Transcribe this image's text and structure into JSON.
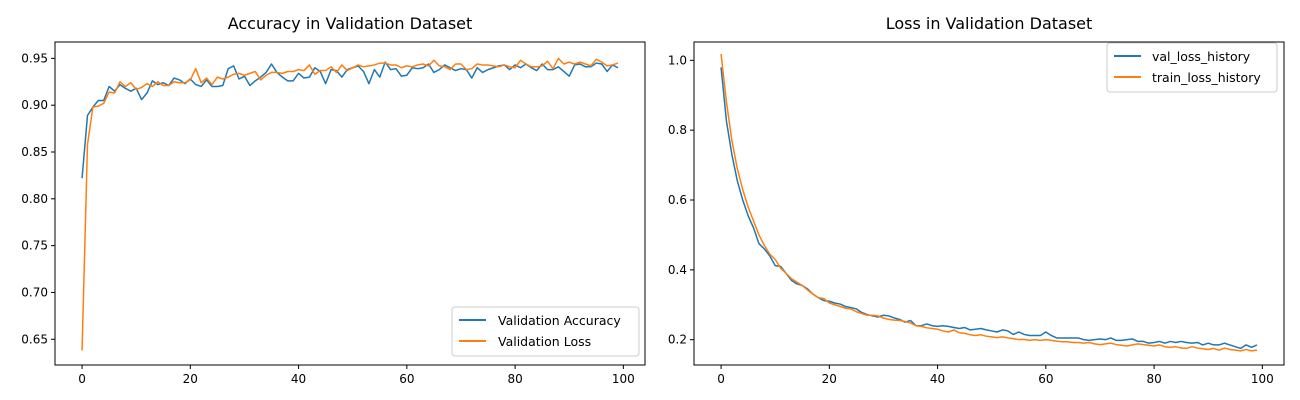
{
  "charts": [
    {
      "title": "Accuracy in Validation Dataset",
      "xticks": [
        0,
        20,
        40,
        60,
        80,
        100
      ],
      "yticks": [
        0.65,
        0.7,
        0.75,
        0.8,
        0.85,
        0.9,
        0.95
      ],
      "ytick_labels": [
        "0.65",
        "0.70",
        "0.75",
        "0.80",
        "0.85",
        "0.90",
        "0.95"
      ],
      "legend": [
        "Validation Accuracy",
        "Validation Loss"
      ]
    },
    {
      "title": "Loss in Validation Dataset",
      "xticks": [
        0,
        20,
        40,
        60,
        80,
        100
      ],
      "yticks": [
        0.2,
        0.4,
        0.6,
        0.8,
        1.0
      ],
      "ytick_labels": [
        "0.2",
        "0.4",
        "0.6",
        "0.8",
        "1.0"
      ],
      "legend": [
        "val_loss_history",
        "train_loss_history"
      ]
    }
  ],
  "colors": {
    "series1": "#1f77b4",
    "series2": "#ff7f0e"
  },
  "chart_data": [
    {
      "type": "line",
      "title": "Accuracy in Validation Dataset",
      "xlabel": "",
      "ylabel": "",
      "xlim": [
        -5,
        104
      ],
      "ylim": [
        0.6225,
        0.9675
      ],
      "grid": false,
      "legend_position": "bottom-right",
      "series": [
        {
          "name": "Validation Accuracy",
          "color": "#1f77b4",
          "x": [
            0,
            1,
            2,
            3,
            4,
            5,
            6,
            7,
            8,
            9,
            10,
            11,
            12,
            13,
            14,
            15,
            16,
            17,
            18,
            19,
            20,
            21,
            22,
            23,
            24,
            25,
            26,
            27,
            28,
            29,
            30,
            31,
            32,
            33,
            34,
            35,
            36,
            37,
            38,
            39,
            40,
            41,
            42,
            43,
            44,
            45,
            46,
            47,
            48,
            49,
            50,
            51,
            52,
            53,
            54,
            55,
            56,
            57,
            58,
            59,
            60,
            61,
            62,
            63,
            64,
            65,
            66,
            67,
            68,
            69,
            70,
            71,
            72,
            73,
            74,
            75,
            76,
            77,
            78,
            79,
            80,
            81,
            82,
            83,
            84,
            85,
            86,
            87,
            88,
            89,
            90,
            91,
            92,
            93,
            94,
            95,
            96,
            97,
            98,
            99
          ],
          "y": [
            0.822,
            0.889,
            0.898,
            0.905,
            0.905,
            0.92,
            0.915,
            0.922,
            0.918,
            0.915,
            0.918,
            0.906,
            0.913,
            0.926,
            0.922,
            0.924,
            0.921,
            0.929,
            0.927,
            0.923,
            0.928,
            0.922,
            0.92,
            0.927,
            0.92,
            0.92,
            0.921,
            0.939,
            0.942,
            0.928,
            0.931,
            0.921,
            0.926,
            0.93,
            0.935,
            0.944,
            0.935,
            0.93,
            0.926,
            0.926,
            0.934,
            0.929,
            0.93,
            0.94,
            0.936,
            0.923,
            0.938,
            0.937,
            0.93,
            0.938,
            0.94,
            0.942,
            0.936,
            0.923,
            0.938,
            0.93,
            0.946,
            0.938,
            0.939,
            0.931,
            0.932,
            0.94,
            0.939,
            0.94,
            0.944,
            0.935,
            0.938,
            0.943,
            0.94,
            0.937,
            0.939,
            0.938,
            0.929,
            0.94,
            0.935,
            0.938,
            0.94,
            0.942,
            0.943,
            0.938,
            0.943,
            0.94,
            0.944,
            0.94,
            0.937,
            0.944,
            0.938,
            0.938,
            0.941,
            0.936,
            0.931,
            0.943,
            0.944,
            0.941,
            0.941,
            0.945,
            0.944,
            0.936,
            0.943,
            0.94
          ]
        },
        {
          "name": "Validation Loss",
          "color": "#ff7f0e",
          "x": [
            0,
            1,
            2,
            3,
            4,
            5,
            6,
            7,
            8,
            9,
            10,
            11,
            12,
            13,
            14,
            15,
            16,
            17,
            18,
            19,
            20,
            21,
            22,
            23,
            24,
            25,
            26,
            27,
            28,
            29,
            30,
            31,
            32,
            33,
            34,
            35,
            36,
            37,
            38,
            39,
            40,
            41,
            42,
            43,
            44,
            45,
            46,
            47,
            48,
            49,
            50,
            51,
            52,
            53,
            54,
            55,
            56,
            57,
            58,
            59,
            60,
            61,
            62,
            63,
            64,
            65,
            66,
            67,
            68,
            69,
            70,
            71,
            72,
            73,
            74,
            75,
            76,
            77,
            78,
            79,
            80,
            81,
            82,
            83,
            84,
            85,
            86,
            87,
            88,
            89,
            90,
            91,
            92,
            93,
            94,
            95,
            96,
            97,
            98,
            99
          ],
          "y": [
            0.638,
            0.858,
            0.898,
            0.899,
            0.902,
            0.914,
            0.913,
            0.925,
            0.92,
            0.924,
            0.917,
            0.919,
            0.923,
            0.92,
            0.925,
            0.921,
            0.921,
            0.925,
            0.924,
            0.924,
            0.927,
            0.939,
            0.924,
            0.929,
            0.922,
            0.93,
            0.928,
            0.93,
            0.933,
            0.934,
            0.932,
            0.934,
            0.936,
            0.927,
            0.932,
            0.935,
            0.935,
            0.934,
            0.936,
            0.936,
            0.938,
            0.937,
            0.943,
            0.933,
            0.937,
            0.937,
            0.941,
            0.935,
            0.943,
            0.937,
            0.94,
            0.943,
            0.941,
            0.942,
            0.943,
            0.945,
            0.945,
            0.943,
            0.943,
            0.94,
            0.942,
            0.941,
            0.943,
            0.944,
            0.942,
            0.948,
            0.942,
            0.941,
            0.938,
            0.944,
            0.944,
            0.938,
            0.939,
            0.944,
            0.943,
            0.943,
            0.942,
            0.941,
            0.943,
            0.941,
            0.94,
            0.948,
            0.944,
            0.941,
            0.941,
            0.942,
            0.947,
            0.939,
            0.95,
            0.944,
            0.946,
            0.944,
            0.946,
            0.944,
            0.942,
            0.949,
            0.946,
            0.942,
            0.943,
            0.945
          ]
        }
      ]
    },
    {
      "type": "line",
      "title": "Loss in Validation Dataset",
      "xlabel": "",
      "ylabel": "",
      "xlim": [
        -5,
        104
      ],
      "ylim": [
        0.1275,
        1.0525
      ],
      "grid": false,
      "legend_position": "top-right",
      "series": [
        {
          "name": "val_loss_history",
          "color": "#1f77b4",
          "x": [
            0,
            1,
            2,
            3,
            4,
            5,
            6,
            7,
            8,
            9,
            10,
            11,
            12,
            13,
            14,
            15,
            16,
            17,
            18,
            19,
            20,
            21,
            22,
            23,
            24,
            25,
            26,
            27,
            28,
            29,
            30,
            31,
            32,
            33,
            34,
            35,
            36,
            37,
            38,
            39,
            40,
            41,
            42,
            43,
            44,
            45,
            46,
            47,
            48,
            49,
            50,
            51,
            52,
            53,
            54,
            55,
            56,
            57,
            58,
            59,
            60,
            61,
            62,
            63,
            64,
            65,
            66,
            67,
            68,
            69,
            70,
            71,
            72,
            73,
            74,
            75,
            76,
            77,
            78,
            79,
            80,
            81,
            82,
            83,
            84,
            85,
            86,
            87,
            88,
            89,
            90,
            91,
            92,
            93,
            94,
            95,
            96,
            97,
            98,
            99
          ],
          "y": [
            0.98,
            0.825,
            0.73,
            0.655,
            0.6,
            0.555,
            0.52,
            0.475,
            0.46,
            0.44,
            0.412,
            0.41,
            0.39,
            0.37,
            0.36,
            0.355,
            0.345,
            0.33,
            0.32,
            0.312,
            0.31,
            0.305,
            0.302,
            0.295,
            0.292,
            0.288,
            0.278,
            0.272,
            0.268,
            0.265,
            0.27,
            0.268,
            0.262,
            0.258,
            0.25,
            0.255,
            0.24,
            0.24,
            0.245,
            0.24,
            0.238,
            0.24,
            0.238,
            0.235,
            0.232,
            0.235,
            0.228,
            0.23,
            0.232,
            0.228,
            0.225,
            0.222,
            0.228,
            0.225,
            0.215,
            0.222,
            0.215,
            0.212,
            0.212,
            0.212,
            0.222,
            0.212,
            0.205,
            0.205,
            0.205,
            0.205,
            0.205,
            0.2,
            0.198,
            0.2,
            0.202,
            0.2,
            0.205,
            0.198,
            0.198,
            0.2,
            0.202,
            0.195,
            0.195,
            0.19,
            0.192,
            0.195,
            0.19,
            0.195,
            0.192,
            0.195,
            0.192,
            0.19,
            0.192,
            0.185,
            0.19,
            0.185,
            0.185,
            0.19,
            0.185,
            0.18,
            0.175,
            0.185,
            0.178,
            0.185
          ]
        },
        {
          "name": "train_loss_history",
          "color": "#ff7f0e",
          "x": [
            0,
            1,
            2,
            3,
            4,
            5,
            6,
            7,
            8,
            9,
            10,
            11,
            12,
            13,
            14,
            15,
            16,
            17,
            18,
            19,
            20,
            21,
            22,
            23,
            24,
            25,
            26,
            27,
            28,
            29,
            30,
            31,
            32,
            33,
            34,
            35,
            36,
            37,
            38,
            39,
            40,
            41,
            42,
            43,
            44,
            45,
            46,
            47,
            48,
            49,
            50,
            51,
            52,
            53,
            54,
            55,
            56,
            57,
            58,
            59,
            60,
            61,
            62,
            63,
            64,
            65,
            66,
            67,
            68,
            69,
            70,
            71,
            72,
            73,
            74,
            75,
            76,
            77,
            78,
            79,
            80,
            81,
            82,
            83,
            84,
            85,
            86,
            87,
            88,
            89,
            90,
            91,
            92,
            93,
            94,
            95,
            96,
            97,
            98,
            99
          ],
          "y": [
            1.018,
            0.88,
            0.77,
            0.69,
            0.63,
            0.58,
            0.54,
            0.5,
            0.47,
            0.445,
            0.43,
            0.405,
            0.39,
            0.375,
            0.365,
            0.355,
            0.342,
            0.33,
            0.32,
            0.318,
            0.305,
            0.3,
            0.295,
            0.29,
            0.288,
            0.28,
            0.275,
            0.27,
            0.27,
            0.268,
            0.262,
            0.258,
            0.256,
            0.255,
            0.252,
            0.248,
            0.24,
            0.238,
            0.234,
            0.232,
            0.23,
            0.225,
            0.222,
            0.228,
            0.22,
            0.218,
            0.214,
            0.212,
            0.214,
            0.21,
            0.208,
            0.206,
            0.208,
            0.205,
            0.203,
            0.2,
            0.201,
            0.198,
            0.2,
            0.198,
            0.2,
            0.198,
            0.196,
            0.194,
            0.194,
            0.192,
            0.192,
            0.19,
            0.192,
            0.188,
            0.186,
            0.188,
            0.19,
            0.186,
            0.184,
            0.182,
            0.185,
            0.188,
            0.186,
            0.184,
            0.182,
            0.185,
            0.18,
            0.178,
            0.18,
            0.176,
            0.175,
            0.18,
            0.176,
            0.174,
            0.172,
            0.175,
            0.17,
            0.176,
            0.172,
            0.17,
            0.168,
            0.172,
            0.168,
            0.17
          ]
        }
      ]
    }
  ]
}
